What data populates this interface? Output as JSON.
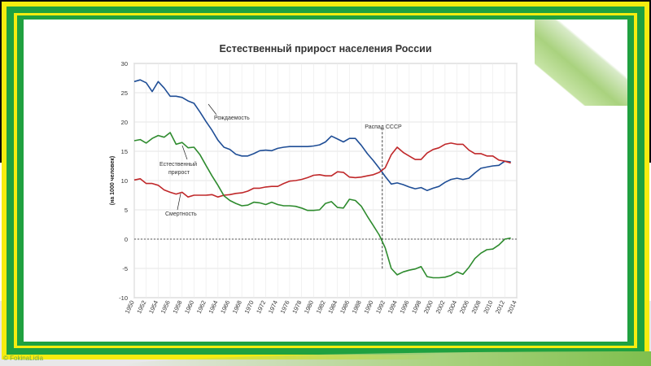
{
  "credit": "© FokinaLidia",
  "chart_data": {
    "type": "line",
    "title": "Естественный прирост населения России",
    "ylabel": "(на 1000 человек)",
    "xlim": [
      1950,
      2014
    ],
    "ylim": [
      -10,
      30
    ],
    "yticks": [
      -10,
      -5,
      0,
      5,
      10,
      15,
      20,
      25,
      30
    ],
    "xticks": [
      1950,
      1952,
      1954,
      1956,
      1958,
      1960,
      1962,
      1964,
      1966,
      1968,
      1970,
      1972,
      1974,
      1976,
      1978,
      1980,
      1982,
      1984,
      1986,
      1988,
      1990,
      1992,
      1994,
      1996,
      1998,
      2000,
      2002,
      2004,
      2006,
      2008,
      2010,
      2012,
      2014
    ],
    "grid": true,
    "annotations": {
      "births": "Рождаемость",
      "natural_line1": "Естественный",
      "natural_line2": "прирост",
      "deaths": "Смертность",
      "ussr": "Распад СССР"
    },
    "ussr_year": 1991.5,
    "series": [
      {
        "name": "Рождаемость",
        "color": "#1f4e96",
        "x": [
          1950,
          1951,
          1952,
          1953,
          1954,
          1955,
          1956,
          1957,
          1958,
          1959,
          1960,
          1961,
          1962,
          1963,
          1964,
          1965,
          1966,
          1967,
          1968,
          1969,
          1970,
          1971,
          1972,
          1973,
          1974,
          1975,
          1976,
          1977,
          1978,
          1979,
          1980,
          1981,
          1982,
          1983,
          1984,
          1985,
          1986,
          1987,
          1988,
          1989,
          1990,
          1991,
          1992,
          1993,
          1994,
          1995,
          1996,
          1997,
          1998,
          1999,
          2000,
          2001,
          2002,
          2003,
          2004,
          2005,
          2006,
          2007,
          2008,
          2009,
          2010,
          2011,
          2012,
          2013
        ],
        "values": [
          26.9,
          27.2,
          26.7,
          25.2,
          26.9,
          25.8,
          24.4,
          24.4,
          24.2,
          23.6,
          23.2,
          21.7,
          20.1,
          18.6,
          16.9,
          15.7,
          15.3,
          14.5,
          14.2,
          14.2,
          14.6,
          15.1,
          15.2,
          15.1,
          15.5,
          15.7,
          15.8,
          15.8,
          15.8,
          15.8,
          15.9,
          16.1,
          16.6,
          17.6,
          17.1,
          16.6,
          17.2,
          17.2,
          16.0,
          14.6,
          13.4,
          12.1,
          10.7,
          9.4,
          9.6,
          9.3,
          8.9,
          8.6,
          8.8,
          8.3,
          8.7,
          9.0,
          9.7,
          10.2,
          10.4,
          10.2,
          10.4,
          11.3,
          12.1,
          12.3,
          12.5,
          12.6,
          13.3,
          13.2
        ]
      },
      {
        "name": "Смертность",
        "color": "#c0282a",
        "x": [
          1950,
          1951,
          1952,
          1953,
          1954,
          1955,
          1956,
          1957,
          1958,
          1959,
          1960,
          1961,
          1962,
          1963,
          1964,
          1965,
          1966,
          1967,
          1968,
          1969,
          1970,
          1971,
          1972,
          1973,
          1974,
          1975,
          1976,
          1977,
          1978,
          1979,
          1980,
          1981,
          1982,
          1983,
          1984,
          1985,
          1986,
          1987,
          1988,
          1989,
          1990,
          1991,
          1992,
          1993,
          1994,
          1995,
          1996,
          1997,
          1998,
          1999,
          2000,
          2001,
          2002,
          2003,
          2004,
          2005,
          2006,
          2007,
          2008,
          2009,
          2010,
          2011,
          2012,
          2013
        ],
        "values": [
          10.1,
          10.3,
          9.5,
          9.5,
          9.2,
          8.4,
          8.0,
          7.7,
          8.0,
          7.2,
          7.5,
          7.5,
          7.5,
          7.6,
          7.2,
          7.5,
          7.6,
          7.8,
          7.9,
          8.2,
          8.7,
          8.7,
          8.9,
          9.0,
          9.0,
          9.5,
          9.9,
          10.0,
          10.2,
          10.5,
          10.9,
          11.0,
          10.8,
          10.8,
          11.5,
          11.4,
          10.6,
          10.5,
          10.6,
          10.8,
          11.0,
          11.4,
          12.2,
          14.4,
          15.7,
          14.8,
          14.2,
          13.6,
          13.6,
          14.7,
          15.3,
          15.6,
          16.2,
          16.4,
          16.2,
          16.2,
          15.2,
          14.6,
          14.6,
          14.2,
          14.2,
          13.5,
          13.3,
          13.0
        ]
      },
      {
        "name": "Естественный прирост",
        "color": "#2e8b2e",
        "x": [
          1950,
          1951,
          1952,
          1953,
          1954,
          1955,
          1956,
          1957,
          1958,
          1959,
          1960,
          1961,
          1962,
          1963,
          1964,
          1965,
          1966,
          1967,
          1968,
          1969,
          1970,
          1971,
          1972,
          1973,
          1974,
          1975,
          1976,
          1977,
          1978,
          1979,
          1980,
          1981,
          1982,
          1983,
          1984,
          1985,
          1986,
          1987,
          1988,
          1989,
          1990,
          1991,
          1992,
          1993,
          1994,
          1995,
          1996,
          1997,
          1998,
          1999,
          2000,
          2001,
          2002,
          2003,
          2004,
          2005,
          2006,
          2007,
          2008,
          2009,
          2010,
          2011,
          2012,
          2013
        ],
        "values": [
          16.8,
          17.0,
          16.4,
          17.2,
          17.7,
          17.4,
          18.2,
          16.2,
          16.5,
          15.6,
          15.7,
          14.4,
          12.6,
          10.8,
          9.2,
          7.4,
          6.6,
          6.1,
          5.7,
          5.8,
          6.3,
          6.2,
          5.9,
          6.3,
          5.9,
          5.7,
          5.7,
          5.6,
          5.3,
          4.9,
          4.9,
          5.0,
          6.1,
          6.4,
          5.4,
          5.3,
          6.8,
          6.6,
          5.6,
          3.9,
          2.3,
          0.7,
          -1.5,
          -5.0,
          -6.1,
          -5.6,
          -5.3,
          -5.1,
          -4.7,
          -6.4,
          -6.6,
          -6.6,
          -6.5,
          -6.2,
          -5.6,
          -6.0,
          -4.8,
          -3.3,
          -2.4,
          -1.8,
          -1.7,
          -1.0,
          0.0,
          0.2
        ]
      }
    ]
  }
}
